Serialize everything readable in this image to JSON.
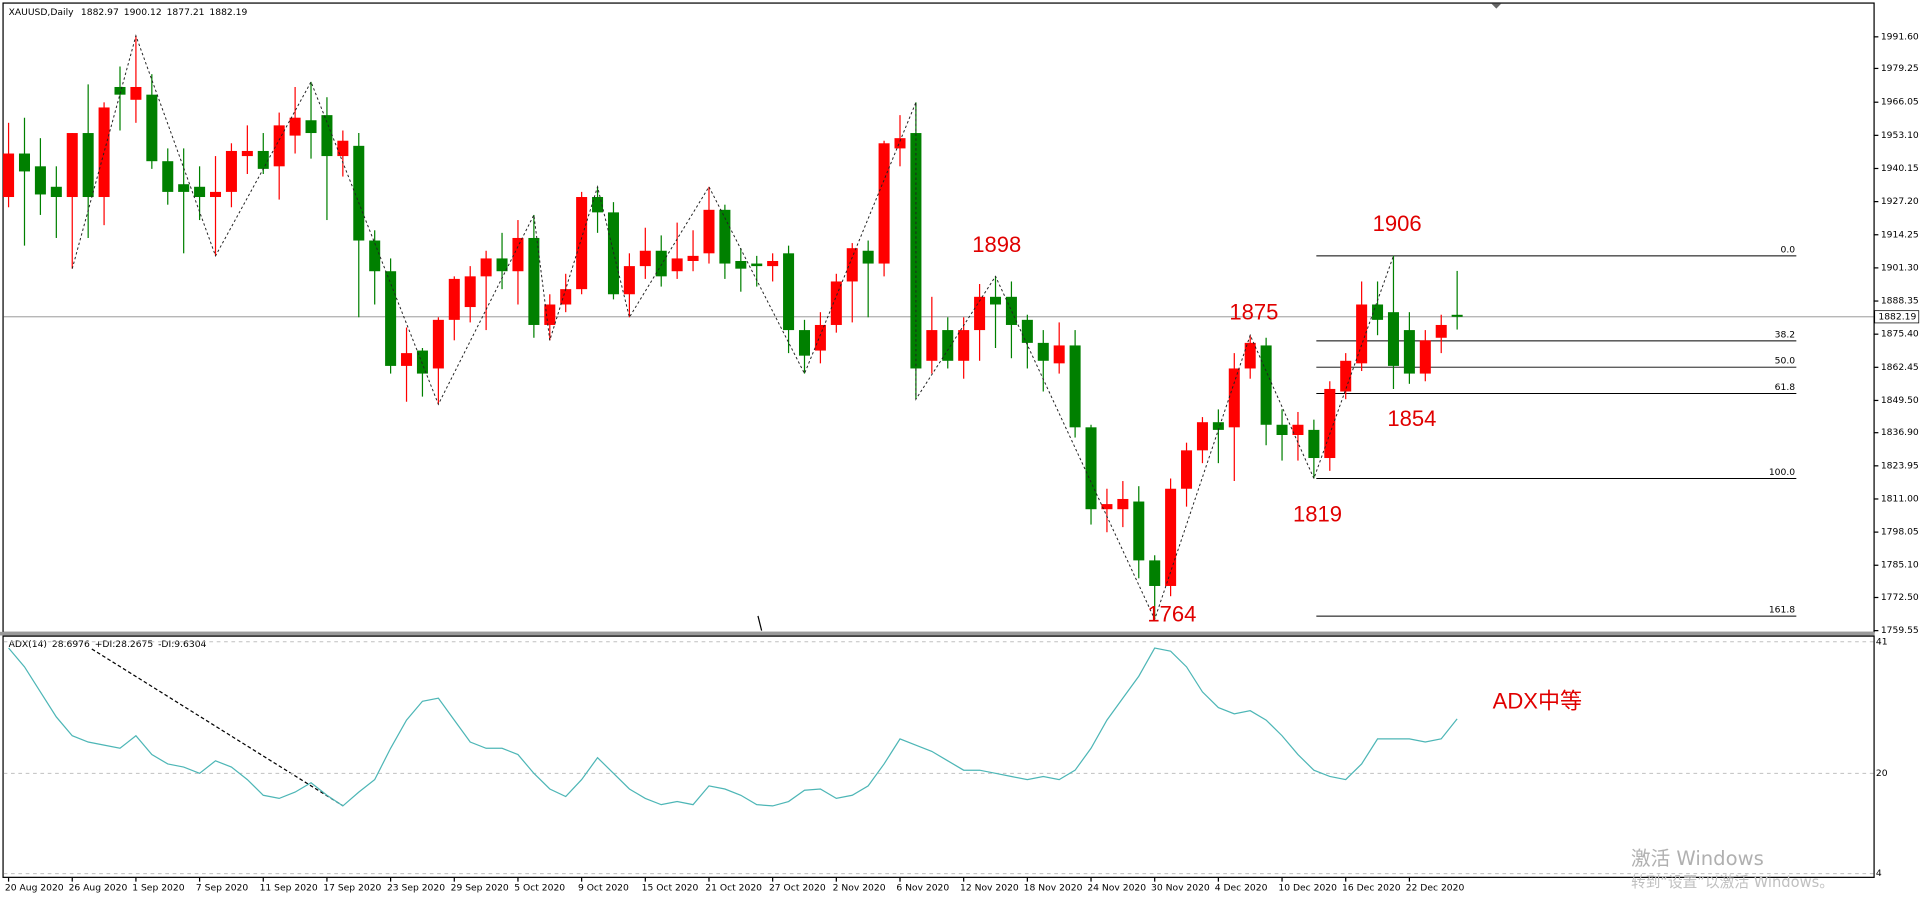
{
  "chart_data": [
    {
      "type": "candlestick",
      "title": "XAUUSD,Daily",
      "categories": [
        "20 Aug 2020",
        null,
        null,
        null,
        "26 Aug 2020",
        null,
        null,
        null,
        "1 Sep 2020",
        null,
        null,
        null,
        "7 Sep 2020",
        null,
        null,
        null,
        "11 Sep 2020",
        null,
        null,
        null,
        "17 Sep 2020",
        null,
        null,
        null,
        "23 Sep 2020",
        null,
        null,
        null,
        "29 Sep 2020",
        null,
        null,
        null,
        "5 Oct 2020",
        null,
        null,
        null,
        "9 Oct 2020",
        null,
        null,
        null,
        "15 Oct 2020",
        null,
        null,
        null,
        "21 Oct 2020",
        null,
        null,
        null,
        "27 Oct 2020",
        null,
        null,
        null,
        "2 Nov 2020",
        null,
        null,
        null,
        "6 Nov 2020",
        null,
        null,
        null,
        "12 Nov 2020",
        null,
        null,
        null,
        "18 Nov 2020",
        null,
        null,
        null,
        "24 Nov 2020",
        null,
        null,
        null,
        "30 Nov 2020",
        null,
        null,
        null,
        "4 Dec 2020",
        null,
        null,
        null,
        "10 Dec 2020",
        null,
        null,
        null,
        "16 Dec 2020",
        null,
        null,
        null,
        "22 Dec 2020",
        null,
        null,
        null
      ],
      "open": [
        1929,
        1946,
        1941,
        1933,
        1929,
        1954,
        1929,
        1972,
        1967,
        1969,
        1943,
        1934,
        1933,
        1929,
        1931,
        1945,
        1947,
        1941,
        1953,
        1959,
        1961,
        1945,
        1949,
        1912,
        1900,
        1863,
        1869,
        1862,
        1881,
        1886,
        1898,
        1905,
        1900,
        1913,
        1879,
        1887,
        1893,
        1929,
        1923,
        1891,
        1902,
        1908,
        1900,
        1904,
        1907,
        1924,
        1904,
        1903,
        1902,
        1907,
        1877,
        1869,
        1879,
        1896,
        1908,
        1903,
        1948,
        1954,
        1865,
        1877,
        1865,
        1877,
        1890,
        1890,
        1881,
        1872,
        1864,
        1871,
        1839,
        1807,
        1807,
        1810,
        1787,
        1777,
        1815,
        1830,
        1841,
        1839,
        1862,
        1871,
        1840,
        1836,
        1838,
        1827,
        1853,
        1864,
        1887,
        1884,
        1877,
        1860,
        1874,
        1882.97
      ],
      "high": [
        1958,
        1960,
        1952,
        1941,
        1954,
        1973,
        1966,
        1980,
        1992,
        1977,
        1948,
        1948,
        1941,
        1945,
        1950,
        1957,
        1954,
        1962,
        1972,
        1974,
        1968,
        1955,
        1954,
        1916,
        1905,
        1878,
        1870,
        1882,
        1898,
        1902,
        1908,
        1915,
        1920,
        1922,
        1891,
        1899,
        1931,
        1933,
        1927,
        1907,
        1917,
        1914,
        1919,
        1916,
        1933,
        1926,
        1909,
        1906,
        1907,
        1910,
        1881,
        1884,
        1899,
        1911,
        1912,
        1951,
        1961,
        1966,
        1890,
        1882,
        1882,
        1895,
        1898,
        1896,
        1883,
        1877,
        1880,
        1877,
        1840,
        1815,
        1818,
        1816,
        1789,
        1819,
        1833,
        1843,
        1846,
        1868,
        1875,
        1874,
        1846,
        1845,
        1842,
        1857,
        1868,
        1896,
        1896,
        1906,
        1884,
        1877,
        1883,
        1900.12
      ],
      "low": [
        1925,
        1910,
        1922,
        1913,
        1901,
        1913,
        1918,
        1955,
        1958,
        1940,
        1926,
        1907,
        1920,
        1906,
        1925,
        1938,
        1938,
        1928,
        1946,
        1944,
        1920,
        1937,
        1882,
        1887,
        1860,
        1849,
        1851,
        1848,
        1873,
        1880,
        1877,
        1893,
        1887,
        1874,
        1873,
        1884,
        1891,
        1915,
        1889,
        1882,
        1897,
        1894,
        1897,
        1900,
        1903,
        1897,
        1892,
        1894,
        1896,
        1868,
        1860,
        1864,
        1876,
        1880,
        1882,
        1898,
        1941,
        1850,
        1860,
        1862,
        1858,
        1865,
        1870,
        1866,
        1862,
        1853,
        1860,
        1835,
        1801,
        1798,
        1800,
        1780,
        1764,
        1773,
        1808,
        1825,
        1825,
        1818,
        1858,
        1832,
        1826,
        1826,
        1819,
        1822,
        1850,
        1861,
        1875,
        1854,
        1856,
        1857,
        1868,
        1877.21
      ],
      "close": [
        1946,
        1939,
        1930,
        1929,
        1954,
        1929,
        1964,
        1969,
        1972,
        1943,
        1931,
        1931,
        1929,
        1931,
        1947,
        1947,
        1940,
        1957,
        1960,
        1954,
        1945,
        1951,
        1912,
        1900,
        1863,
        1868,
        1860,
        1881,
        1897,
        1898,
        1905,
        1900,
        1913,
        1879,
        1887,
        1893,
        1929,
        1923,
        1891,
        1902,
        1908,
        1898,
        1905,
        1906,
        1924,
        1903,
        1901,
        1902,
        1904,
        1877,
        1867,
        1879,
        1896,
        1909,
        1903,
        1950,
        1952,
        1862,
        1877,
        1865,
        1877,
        1890,
        1887,
        1879,
        1872,
        1865,
        1871,
        1839,
        1807,
        1809,
        1811,
        1787,
        1777,
        1815,
        1830,
        1841,
        1838,
        1862,
        1872,
        1840,
        1836,
        1840,
        1827,
        1854,
        1865,
        1887,
        1881,
        1863,
        1860,
        1873,
        1879,
        1882.19
      ],
      "up_color": "#ff0000",
      "down_color": "#008000",
      "price_line_color": "#8c8c8c",
      "ylim": [
        1758.6,
        2003.6
      ],
      "yticks": [
        {
          "value": 1991.6,
          "label": "1991.60"
        },
        1979.25,
        1966.05,
        {
          "value": 1953.1,
          "label": "1953.10"
        },
        1940.15,
        {
          "value": 1927.2,
          "label": "1927.20"
        },
        1914.25,
        {
          "value": 1901.3,
          "label": "1901.30"
        },
        1888.35,
        {
          "value": 1875.4,
          "label": "1875.40"
        },
        1862.45,
        {
          "value": 1849.5,
          "label": "1849.50"
        },
        {
          "value": 1836.9,
          "label": "1836.90"
        },
        1823.95,
        {
          "value": 1811,
          "label": "1811.00"
        },
        1798.05,
        {
          "value": 1785.1,
          "label": "1785.10"
        },
        {
          "value": 1772.5,
          "label": "1772.50"
        },
        1759.55
      ],
      "zigzag": {
        "color": "#222222",
        "x": [
          4,
          8,
          13,
          19,
          27,
          33,
          34,
          37,
          39,
          44,
          50,
          57,
          57,
          62,
          72,
          78,
          82,
          87
        ],
        "values": [
          1901,
          1992,
          1906,
          1974,
          1848,
          1922,
          1873,
          1933,
          1882,
          1933,
          1860,
          1966,
          1850,
          1898,
          1764,
          1875,
          1819,
          1906
        ]
      },
      "fibonacci": {
        "color": "#000000",
        "levels": [
          {
            "label": "0.0",
            "price": 1906
          },
          {
            "label": "38.2",
            "price": 1872.77
          },
          {
            "label": "50.0",
            "price": 1862.5
          },
          {
            "label": "61.8",
            "price": 1852.23
          },
          {
            "label": "100.0",
            "price": 1819
          },
          {
            "label": "161.8",
            "price": 1765.23
          }
        ]
      },
      "annotations": [
        "1898",
        "1906",
        "1875",
        "1854",
        "1819",
        "1764",
        "ADX中等"
      ]
    },
    {
      "type": "line",
      "name": "ADX(14)",
      "color": "#4db6b6",
      "values": [
        40,
        37,
        33,
        29,
        26,
        25,
        24.5,
        24,
        26,
        23,
        21.5,
        21,
        20,
        22,
        21,
        19,
        16.5,
        16,
        17,
        18.5,
        16.5,
        14.8,
        17,
        19,
        24,
        28.5,
        31.5,
        32,
        28.5,
        25,
        24,
        24,
        23,
        20,
        17.5,
        16.3,
        19,
        22.5,
        20,
        17.5,
        16,
        15,
        15.5,
        15,
        18,
        17.5,
        16.5,
        15,
        14.8,
        15.5,
        17.3,
        17.5,
        16,
        16.5,
        18,
        21.5,
        25.5,
        24.5,
        23.5,
        22,
        20.5,
        20.5,
        20,
        19.5,
        19,
        19.5,
        19,
        20.5,
        24,
        28.5,
        32,
        35.5,
        40,
        39.5,
        37,
        33,
        30.5,
        29.5,
        30,
        28.5,
        26,
        23,
        20.5,
        19.5,
        19,
        21.5,
        25.5,
        25.5,
        25.5,
        25,
        25.5,
        28.6976
      ],
      "plus_di": {
        "label": "+DI:",
        "value": 28.2675
      },
      "minus_di": {
        "label": "-DI:",
        "value": 9.6304
      },
      "ylim": [
        3.3,
        42
      ],
      "yticks": [
        41,
        20,
        4
      ],
      "grid": true
    },
    {
      "watermark": [
        "激活 Windows",
        "转到“设置”以激活 Windows。"
      ]
    }
  ]
}
